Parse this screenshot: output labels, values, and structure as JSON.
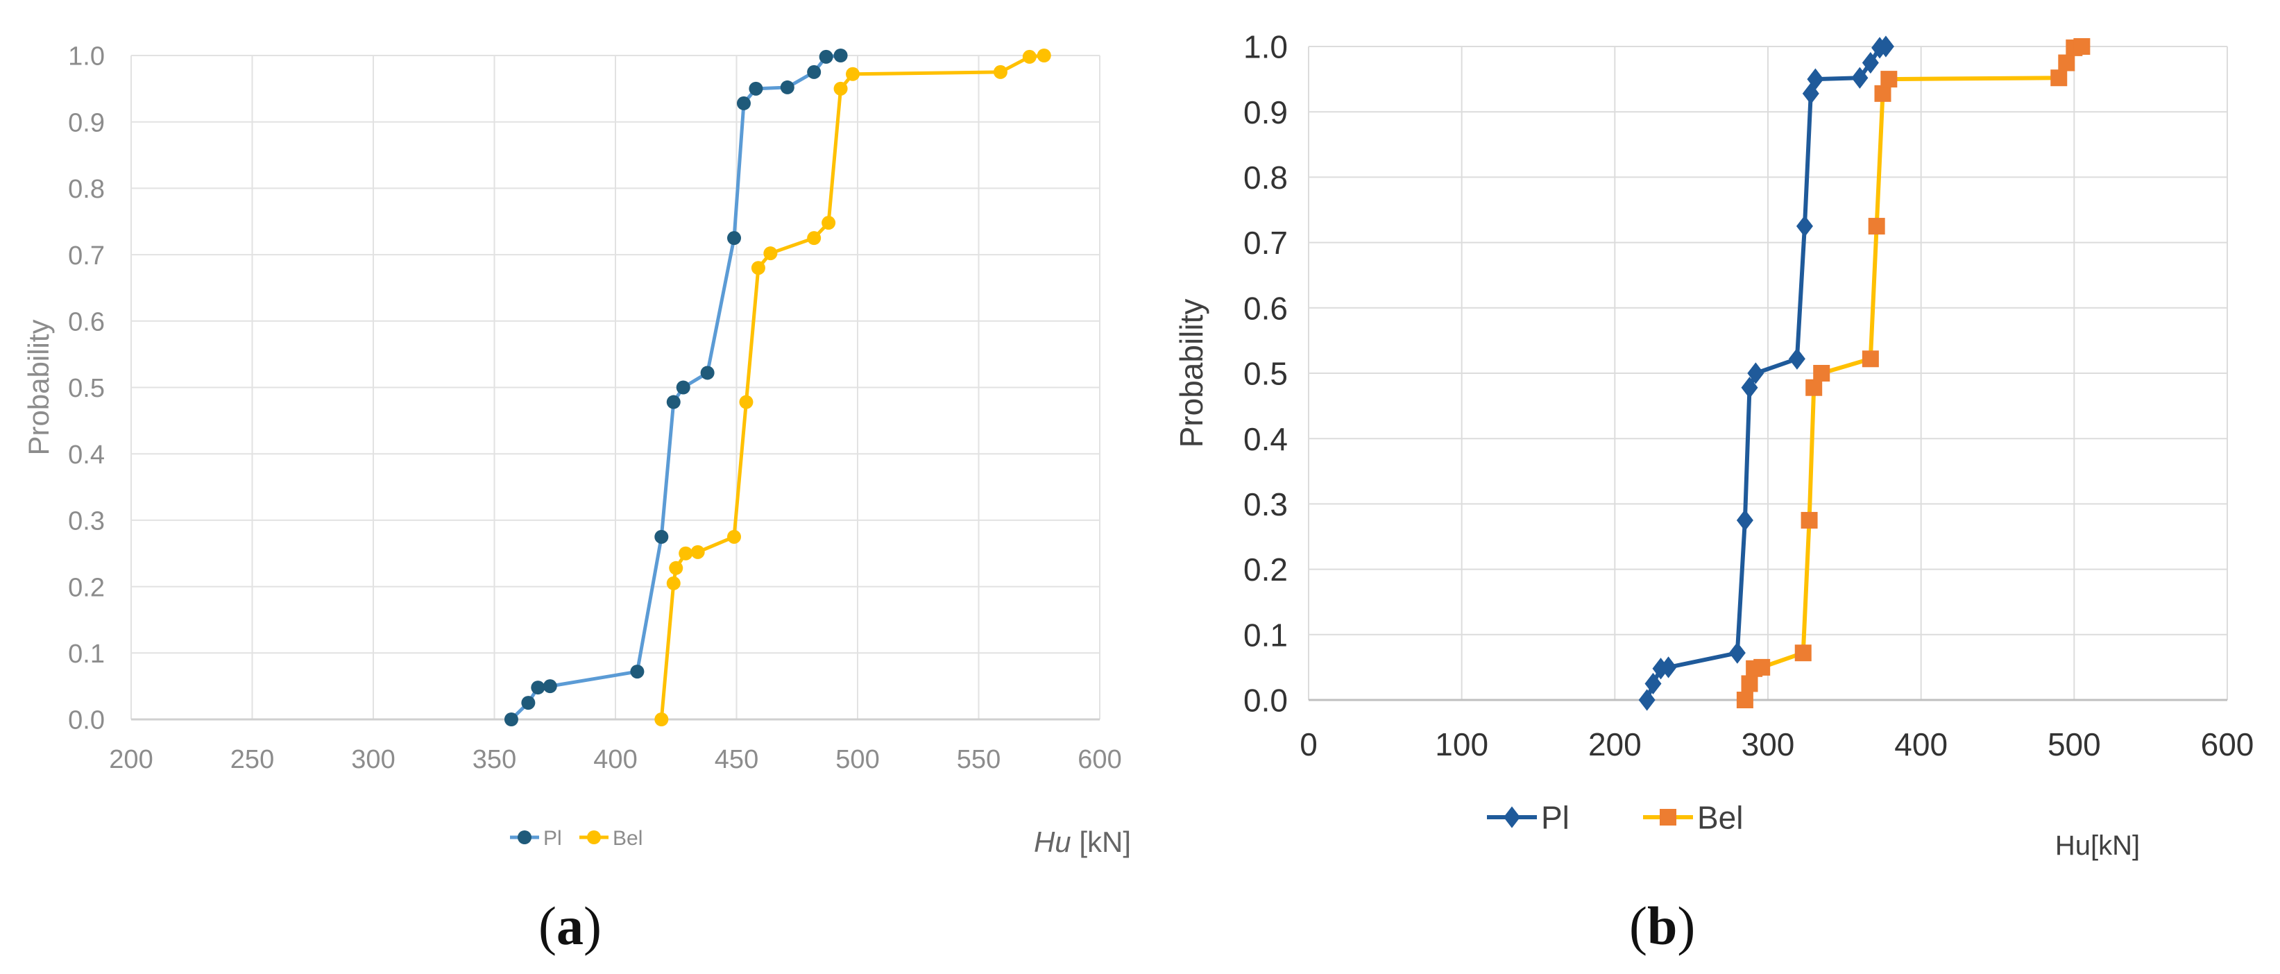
{
  "chart_data": [
    {
      "id": "a",
      "type": "line",
      "caption_label": "a",
      "ylabel": "Probability",
      "xlabel_italic": "Hu",
      "xlabel_rest": " [kN]",
      "xlim": [
        200,
        600
      ],
      "ylim": [
        0,
        1.0
      ],
      "x_ticks": [
        "200",
        "250",
        "300",
        "350",
        "400",
        "450",
        "500",
        "550",
        "600"
      ],
      "y_ticks": [
        "0.0",
        "0.1",
        "0.2",
        "0.3",
        "0.4",
        "0.5",
        "0.6",
        "0.7",
        "0.8",
        "0.9",
        "1.0"
      ],
      "grid": true,
      "legend_position": "bottom",
      "series": [
        {
          "name": "Pl",
          "line_color": "#5b9bd5",
          "marker_color": "#1f5a7a",
          "marker": "circle",
          "points": [
            [
              357,
              0.0
            ],
            [
              364,
              0.025
            ],
            [
              368,
              0.048
            ],
            [
              373,
              0.05
            ],
            [
              409,
              0.072
            ],
            [
              419,
              0.275
            ],
            [
              424,
              0.478
            ],
            [
              428,
              0.5
            ],
            [
              438,
              0.522
            ],
            [
              449,
              0.725
            ],
            [
              453,
              0.928
            ],
            [
              458,
              0.95
            ],
            [
              471,
              0.952
            ],
            [
              482,
              0.975
            ],
            [
              487,
              0.998
            ],
            [
              493,
              1.0
            ]
          ]
        },
        {
          "name": "Bel",
          "line_color": "#ffc000",
          "marker_color": "#ffc000",
          "marker": "circle",
          "points": [
            [
              419,
              0.0
            ],
            [
              424,
              0.205
            ],
            [
              425,
              0.228
            ],
            [
              429,
              0.25
            ],
            [
              434,
              0.252
            ],
            [
              449,
              0.275
            ],
            [
              454,
              0.478
            ],
            [
              459,
              0.68
            ],
            [
              464,
              0.702
            ],
            [
              482,
              0.725
            ],
            [
              488,
              0.748
            ],
            [
              493,
              0.95
            ],
            [
              498,
              0.972
            ],
            [
              559,
              0.975
            ],
            [
              571,
              0.998
            ],
            [
              577,
              1.0
            ]
          ]
        }
      ]
    },
    {
      "id": "b",
      "type": "line",
      "caption_label": "b",
      "ylabel": "Probability",
      "xlabel": "Hu[kN]",
      "xlim": [
        0,
        600
      ],
      "ylim": [
        0,
        1.0
      ],
      "x_ticks": [
        "0",
        "100",
        "200",
        "300",
        "400",
        "500",
        "600"
      ],
      "y_ticks": [
        "0.0",
        "0.1",
        "0.2",
        "0.3",
        "0.4",
        "0.5",
        "0.6",
        "0.7",
        "0.8",
        "0.9",
        "1.0"
      ],
      "grid": true,
      "legend_position": "bottom",
      "series": [
        {
          "name": "Pl",
          "line_color": "#1f5a9a",
          "marker_color": "#1f5a9a",
          "marker": "diamond",
          "points": [
            [
              221,
              0.0
            ],
            [
              225,
              0.025
            ],
            [
              230,
              0.048
            ],
            [
              235,
              0.05
            ],
            [
              280,
              0.072
            ],
            [
              285,
              0.275
            ],
            [
              288,
              0.478
            ],
            [
              292,
              0.5
            ],
            [
              319,
              0.522
            ],
            [
              324,
              0.725
            ],
            [
              328,
              0.928
            ],
            [
              331,
              0.95
            ],
            [
              360,
              0.952
            ],
            [
              367,
              0.975
            ],
            [
              373,
              0.998
            ],
            [
              377,
              1.0
            ]
          ]
        },
        {
          "name": "Bel",
          "line_color": "#ffc000",
          "marker_color": "#ed7d31",
          "marker": "square",
          "points": [
            [
              285,
              0.0
            ],
            [
              288,
              0.025
            ],
            [
              291,
              0.048
            ],
            [
              296,
              0.05
            ],
            [
              323,
              0.072
            ],
            [
              327,
              0.275
            ],
            [
              330,
              0.478
            ],
            [
              335,
              0.5
            ],
            [
              367,
              0.522
            ],
            [
              371,
              0.725
            ],
            [
              375,
              0.928
            ],
            [
              379,
              0.95
            ],
            [
              490,
              0.952
            ],
            [
              495,
              0.975
            ],
            [
              500,
              0.998
            ],
            [
              505,
              1.0
            ]
          ]
        }
      ]
    }
  ]
}
